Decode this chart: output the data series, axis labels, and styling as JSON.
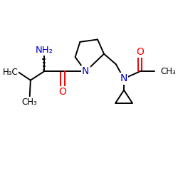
{
  "background_color": "#ffffff",
  "bond_color": "#000000",
  "nitrogen_color": "#0000cc",
  "oxygen_color": "#ff0000",
  "lw": 1.4,
  "fs": 8.5,
  "xlim": [
    0,
    10
  ],
  "ylim": [
    0,
    10
  ]
}
